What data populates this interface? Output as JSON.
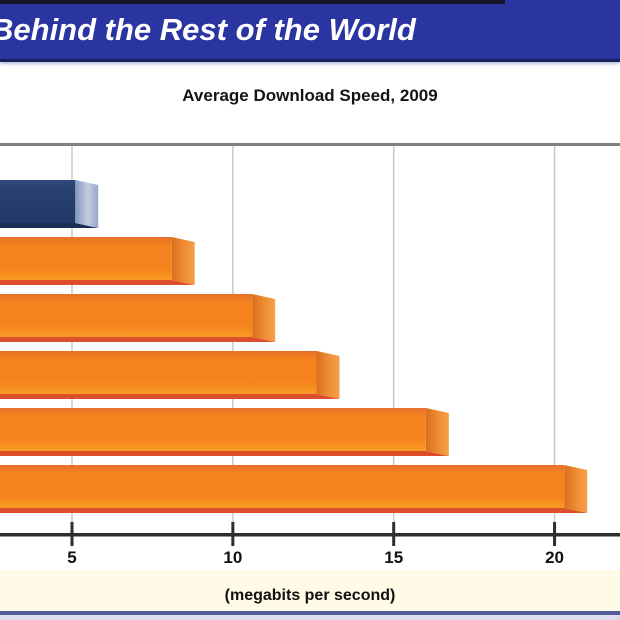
{
  "header": {
    "title": "Behind the Rest of the World"
  },
  "chart_data": {
    "type": "bar",
    "orientation": "horizontal",
    "title": "Average Download Speed, 2009",
    "values": [
      5.1,
      8.1,
      10.6,
      12.6,
      16.0,
      20.3
    ],
    "highlight_index": 0,
    "xlabel": "(megabits per second)",
    "x_ticks": [
      5,
      10,
      15,
      20
    ],
    "x_tick_labels": [
      "5",
      "10",
      "15",
      "20"
    ],
    "xlim_visible": [
      2.8,
      22
    ],
    "grid": true,
    "legend": "none",
    "colors": {
      "highlight_bar_face": "#27406e",
      "highlight_bar_cap": "#c3cde2",
      "highlight_bar_bottom": "#1c2f55",
      "bar_face": "#f5821f",
      "bar_face_top_shade": "#e4702a",
      "bar_cap": "#ef8d35",
      "bar_bottom": "#dd4e2c",
      "gridline": "#c9c9c9",
      "axis": "#2e2e2e",
      "banner": "#2b35a2",
      "footer_rule": "#4f5e9a",
      "footer_band": "#fffbe6"
    }
  }
}
